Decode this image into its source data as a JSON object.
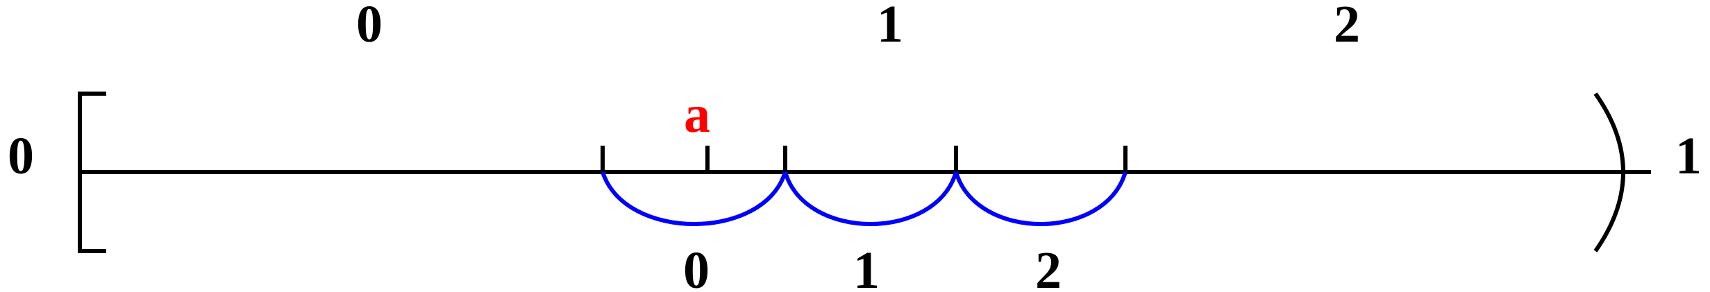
{
  "diagram": {
    "top_labels": [
      "0",
      "1",
      "2"
    ],
    "left_label": "0",
    "right_label": "1",
    "point_label": "a",
    "bottom_labels": [
      "0",
      "1",
      "2"
    ],
    "colors": {
      "line": "#000000",
      "arcs": "#0000ff",
      "point_label": "#ff0000"
    }
  }
}
